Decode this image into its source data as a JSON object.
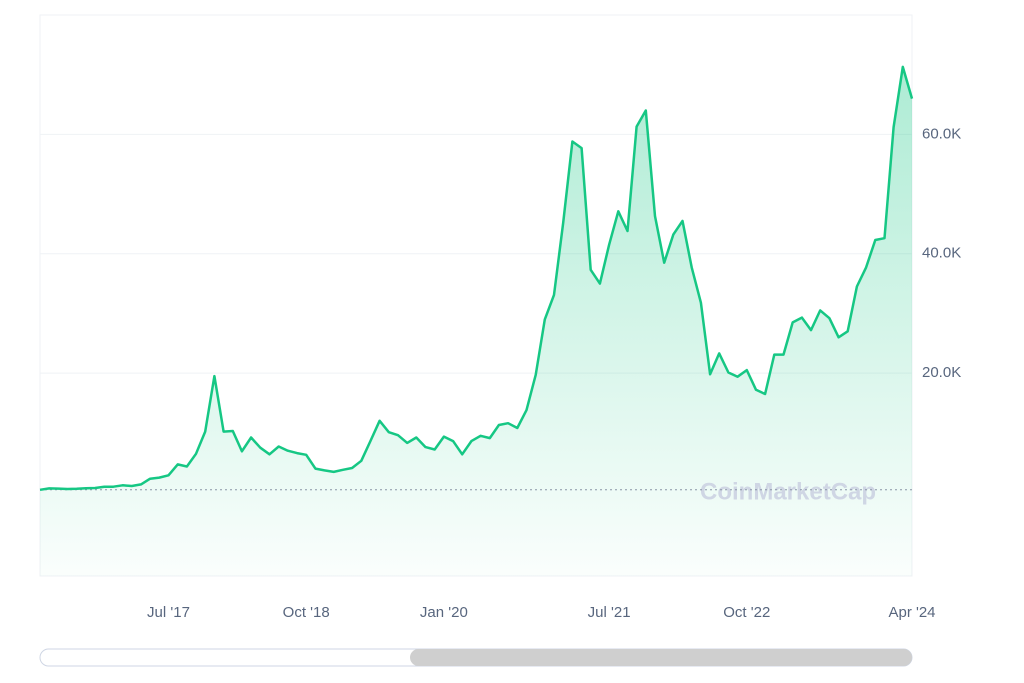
{
  "chart_data": {
    "type": "area",
    "watermark": "CoinMarketCap",
    "x": [
      "2016-05",
      "2016-06",
      "2016-07",
      "2016-08",
      "2016-09",
      "2016-10",
      "2016-11",
      "2016-12",
      "2017-01",
      "2017-02",
      "2017-03",
      "2017-04",
      "2017-05",
      "2017-06",
      "2017-07",
      "2017-08",
      "2017-09",
      "2017-10",
      "2017-11",
      "2017-12",
      "2018-01",
      "2018-02",
      "2018-03",
      "2018-04",
      "2018-05",
      "2018-06",
      "2018-07",
      "2018-08",
      "2018-09",
      "2018-10",
      "2018-11",
      "2018-12",
      "2019-01",
      "2019-02",
      "2019-03",
      "2019-04",
      "2019-05",
      "2019-06",
      "2019-07",
      "2019-08",
      "2019-09",
      "2019-10",
      "2019-11",
      "2019-12",
      "2020-01",
      "2020-02",
      "2020-03",
      "2020-04",
      "2020-05",
      "2020-06",
      "2020-07",
      "2020-08",
      "2020-09",
      "2020-10",
      "2020-11",
      "2020-12",
      "2021-01",
      "2021-02",
      "2021-03",
      "2021-04",
      "2021-05",
      "2021-06",
      "2021-07",
      "2021-08",
      "2021-09",
      "2021-10",
      "2021-11",
      "2021-12",
      "2022-01",
      "2022-02",
      "2022-03",
      "2022-04",
      "2022-05",
      "2022-06",
      "2022-07",
      "2022-08",
      "2022-09",
      "2022-10",
      "2022-11",
      "2022-12",
      "2023-01",
      "2023-02",
      "2023-03",
      "2023-04",
      "2023-05",
      "2023-06",
      "2023-07",
      "2023-08",
      "2023-09",
      "2023-10",
      "2023-11",
      "2023-12",
      "2024-01",
      "2024-02",
      "2024-03",
      "2024-04"
    ],
    "series": [
      {
        "color": "#16c784",
        "values": [
          450,
          670,
          650,
          570,
          610,
          700,
          740,
          960,
          970,
          1190,
          1080,
          1350,
          2300,
          2480,
          2870,
          4700,
          4340,
          6470,
          10200,
          19500,
          10200,
          10300,
          6900,
          9200,
          7500,
          6400,
          7700,
          7000,
          6600,
          6300,
          4000,
          3700,
          3450,
          3800,
          4100,
          5300,
          8600,
          12000,
          10100,
          9600,
          8300,
          9200,
          7600,
          7200,
          9350,
          8600,
          6400,
          8600,
          9500,
          9100,
          11300,
          11600,
          10800,
          13800,
          19700,
          29000,
          33100,
          45200,
          58800,
          57700,
          37300,
          35000,
          41500,
          47100,
          43800,
          61300,
          64000,
          46300,
          38500,
          43200,
          45500,
          37700,
          31800,
          19800,
          23300,
          20100,
          19400,
          20500,
          17200,
          16500,
          23100,
          23100,
          28500,
          29300,
          27200,
          30500,
          29200,
          26000,
          27000,
          34500,
          37700,
          42300,
          42600,
          61200,
          71300,
          66000
        ]
      }
    ],
    "xlim": [
      "2016-05",
      "2024-04"
    ],
    "xticks": [
      {
        "value": "2017-07",
        "label": "Jul '17"
      },
      {
        "value": "2018-10",
        "label": "Oct '18"
      },
      {
        "value": "2020-01",
        "label": "Jan '20"
      },
      {
        "value": "2021-07",
        "label": "Jul '21"
      },
      {
        "value": "2022-10",
        "label": "Oct '22"
      },
      {
        "value": "2024-04",
        "label": "Apr '24"
      }
    ],
    "ylim": [
      -14000,
      80000
    ],
    "yticks": [
      {
        "value": 20000,
        "label": "20.0K"
      },
      {
        "value": 40000,
        "label": "40.0K"
      },
      {
        "value": 60000,
        "label": "60.0K"
      }
    ],
    "grid": true
  }
}
